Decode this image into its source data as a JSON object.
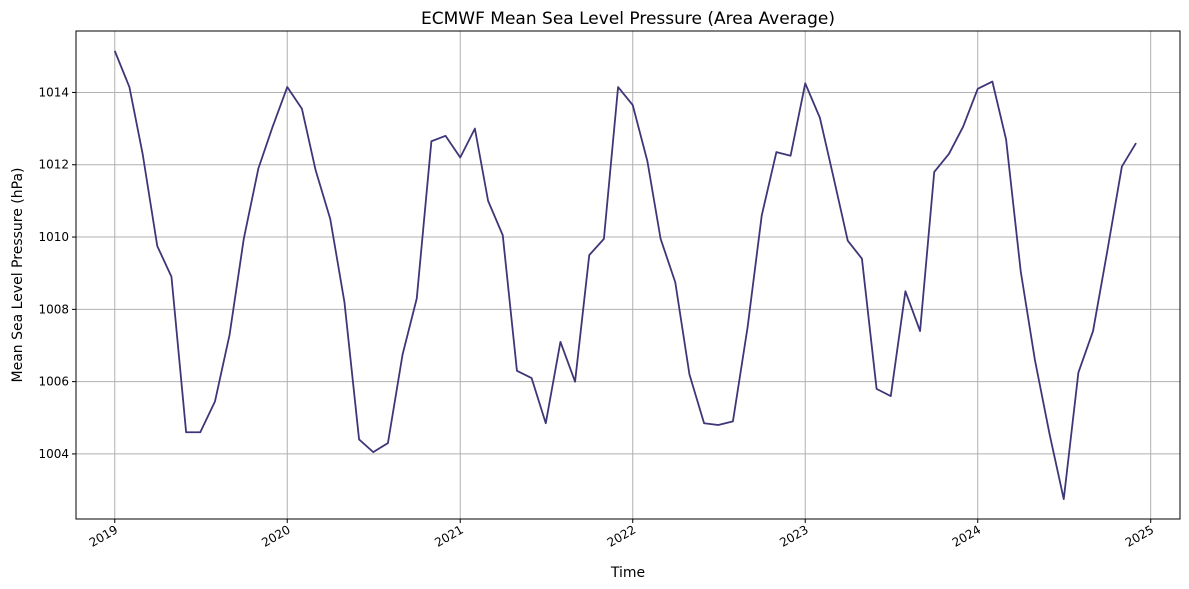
{
  "chart_data": {
    "type": "line",
    "title": "ECMWF Mean Sea Level Pressure (Area Average)",
    "xlabel": "Time",
    "ylabel": "Mean Sea Level Pressure (hPa)",
    "x_ticks": [
      "2019",
      "2020",
      "2021",
      "2022",
      "2023",
      "2024",
      "2025"
    ],
    "y_ticks": [
      "1004",
      "1006",
      "1008",
      "1010",
      "1012",
      "1014"
    ],
    "xlim": [
      "2018-10-11",
      "2025-03-04"
    ],
    "ylim": [
      1002.2,
      1015.7
    ],
    "grid": true,
    "line_color": "#3d3778",
    "series": [
      {
        "x": [
          "2019-01",
          "2019-02",
          "2019-03",
          "2019-04",
          "2019-05",
          "2019-06",
          "2019-07",
          "2019-08",
          "2019-09",
          "2019-10",
          "2019-11",
          "2019-12",
          "2020-01",
          "2020-02",
          "2020-03",
          "2020-04",
          "2020-05",
          "2020-06",
          "2020-07",
          "2020-08",
          "2020-09",
          "2020-10",
          "2020-11",
          "2020-12",
          "2021-01",
          "2021-02",
          "2021-03",
          "2021-04",
          "2021-05",
          "2021-06",
          "2021-07",
          "2021-08",
          "2021-09",
          "2021-10",
          "2021-11",
          "2021-12",
          "2022-01",
          "2022-02",
          "2022-03",
          "2022-04",
          "2022-05",
          "2022-06",
          "2022-07",
          "2022-08",
          "2022-09",
          "2022-10",
          "2022-11",
          "2022-12",
          "2023-01",
          "2023-02",
          "2023-03",
          "2023-04",
          "2023-05",
          "2023-06",
          "2023-07",
          "2023-08",
          "2023-09",
          "2023-10",
          "2023-11",
          "2023-12",
          "2024-01",
          "2024-02",
          "2024-03",
          "2024-04",
          "2024-05",
          "2024-06",
          "2024-07",
          "2024-08",
          "2024-09",
          "2024-10",
          "2024-11",
          "2024-12"
        ],
        "y": [
          1015.15,
          1014.15,
          1012.3,
          1009.75,
          1008.9,
          1004.6,
          1004.6,
          1005.45,
          1007.3,
          1009.95,
          1011.9,
          1013.05,
          1014.15,
          1013.55,
          1011.85,
          1010.5,
          1008.2,
          1004.4,
          1004.05,
          1004.3,
          1006.75,
          1008.3,
          1012.65,
          1012.8,
          1012.2,
          1013.0,
          1011.0,
          1010.05,
          1006.3,
          1006.1,
          1004.85,
          1007.1,
          1006.0,
          1009.5,
          1009.95,
          1014.15,
          1013.65,
          1012.1,
          1009.95,
          1008.75,
          1006.2,
          1004.85,
          1004.8,
          1004.9,
          1007.5,
          1010.6,
          1012.35,
          1012.25,
          1014.25,
          1013.3,
          1011.7,
          1009.9,
          1009.4,
          1005.8,
          1005.6,
          1008.5,
          1007.4,
          1011.8,
          1012.3,
          1013.05,
          1014.1,
          1014.3,
          1012.7,
          1009.05,
          1006.6,
          1004.55,
          1002.75,
          1006.25,
          1007.4,
          1009.6,
          1011.95,
          1012.6
        ]
      }
    ]
  }
}
